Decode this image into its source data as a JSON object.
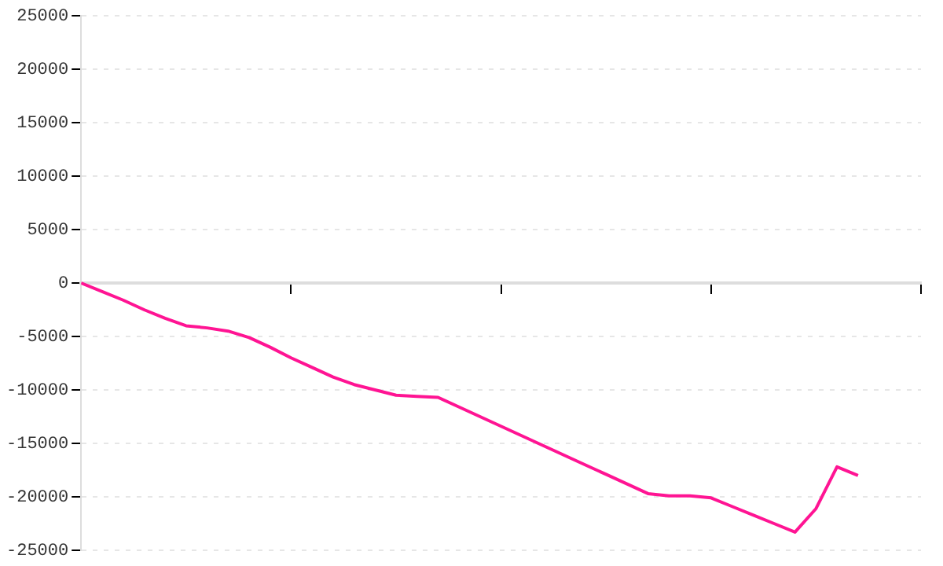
{
  "chart_data": {
    "type": "line",
    "categories": [
      null,
      null,
      null,
      null,
      null,
      null,
      null,
      null,
      null,
      null,
      null,
      null,
      null,
      null,
      null,
      null,
      null,
      null,
      null,
      null,
      null,
      null,
      null,
      null,
      null,
      null,
      null,
      null,
      null,
      null,
      null,
      null,
      null,
      null,
      null,
      null,
      null,
      null,
      null,
      null,
      null
    ],
    "series": [
      {
        "color": "#ff1493",
        "values": [
          0,
          -800,
          -1600,
          -2500,
          -3300,
          -4000,
          -4200,
          -4500,
          -5100,
          -6000,
          -7000,
          -7900,
          -8800,
          -9500,
          -10000,
          -10500,
          -10600,
          -10700,
          -11600,
          -12500,
          -13400,
          -14300,
          -15200,
          -16100,
          -17000,
          -17900,
          -18800,
          -19700,
          -19900,
          -19900,
          -20100,
          -20900,
          -21700,
          -22500,
          -23300,
          -21100,
          -17200,
          -18000,
          null,
          null,
          null
        ]
      }
    ],
    "ylim": [
      -25000,
      25000
    ],
    "yticks": [
      -25000,
      -20000,
      -15000,
      -10000,
      -5000,
      0,
      5000,
      10000,
      15000,
      20000,
      25000
    ],
    "grid": "y",
    "legend": false,
    "marker": "none",
    "line_style": "solid"
  }
}
